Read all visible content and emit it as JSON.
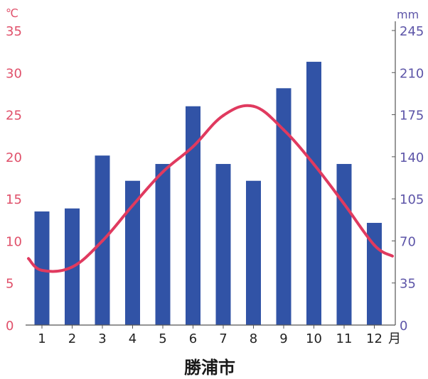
{
  "chart_data": {
    "type": "bar+line",
    "title": "勝浦市",
    "categories": [
      "1",
      "2",
      "3",
      "4",
      "5",
      "6",
      "7",
      "8",
      "9",
      "10",
      "11",
      "12"
    ],
    "x_unit": "月",
    "series": [
      {
        "kind": "bar",
        "axis": "right",
        "color": "#3153a6",
        "values": [
          94.5,
          97,
          141,
          120,
          134,
          182,
          134,
          120,
          197,
          219,
          134,
          85
        ]
      },
      {
        "kind": "line",
        "axis": "left",
        "color": "#e03a5f",
        "values": [
          6.5,
          6.9,
          10.0,
          14.2,
          18.2,
          21.2,
          24.9,
          26.0,
          23.2,
          19.1,
          14.4,
          9.5
        ],
        "start_value": 7.9,
        "end_value": 8.2
      }
    ],
    "y_left": {
      "unit": "℃",
      "ticks": [
        "0",
        "5",
        "10",
        "15",
        "20",
        "25",
        "30",
        "35"
      ],
      "range": [
        0,
        35
      ],
      "color": "#e0506a"
    },
    "y_right": {
      "unit": "mm",
      "ticks": [
        "0",
        "35",
        "70",
        "105",
        "140",
        "175",
        "210",
        "245"
      ],
      "range": [
        0,
        245
      ],
      "color": "#5d55a8"
    },
    "grid": false,
    "legend": "none"
  }
}
